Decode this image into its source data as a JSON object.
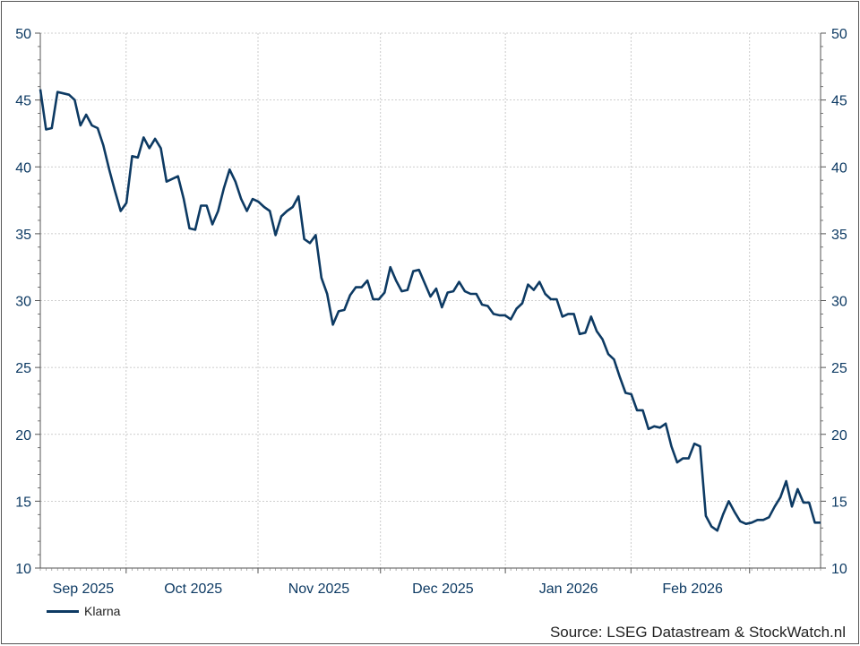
{
  "chart_data": {
    "type": "line",
    "x_axis_labels": [
      "Sep 2025",
      "Oct 2025",
      "Nov 2025",
      "Dec 2025",
      "Jan 2026",
      "Feb 2026"
    ],
    "y_ticks": [
      10,
      15,
      20,
      25,
      30,
      35,
      40,
      45,
      50
    ],
    "ylim": [
      10,
      50
    ],
    "grid": true,
    "legend_position": "bottom-left",
    "series": [
      {
        "name": "Klarna",
        "color": "#0d3a63",
        "values": [
          45.8,
          42.8,
          42.9,
          45.6,
          45.5,
          45.4,
          45.0,
          43.1,
          43.9,
          43.1,
          42.9,
          41.6,
          39.8,
          38.2,
          36.7,
          37.3,
          40.8,
          40.7,
          42.2,
          41.4,
          42.1,
          41.4,
          38.9,
          39.1,
          39.3,
          37.6,
          35.4,
          35.3,
          37.1,
          37.1,
          35.7,
          36.7,
          38.4,
          39.8,
          38.9,
          37.6,
          36.7,
          37.6,
          37.4,
          37.0,
          36.7,
          34.9,
          36.3,
          36.7,
          37.0,
          37.8,
          34.6,
          34.3,
          34.9,
          31.7,
          30.5,
          28.2,
          29.2,
          29.3,
          30.4,
          31.0,
          31.0,
          31.5,
          30.1,
          30.1,
          30.6,
          32.5,
          31.5,
          30.7,
          30.8,
          32.2,
          32.3,
          31.3,
          30.3,
          30.9,
          29.5,
          30.6,
          30.7,
          31.4,
          30.7,
          30.5,
          30.5,
          29.7,
          29.6,
          29.0,
          28.9,
          28.9,
          28.6,
          29.4,
          29.8,
          31.2,
          30.8,
          31.4,
          30.5,
          30.1,
          30.1,
          28.8,
          29.0,
          29.0,
          27.5,
          27.6,
          28.8,
          27.7,
          27.1,
          26.0,
          25.6,
          24.3,
          23.1,
          23.0,
          21.8,
          21.8,
          20.4,
          20.6,
          20.5,
          20.8,
          19.1,
          17.9,
          18.2,
          18.2,
          19.3,
          19.1,
          13.9,
          13.1,
          12.8,
          14.0,
          15.0,
          14.2,
          13.5,
          13.3,
          13.4,
          13.6,
          13.6,
          13.8,
          14.6,
          15.3,
          16.5,
          14.6,
          15.9,
          14.9,
          14.9,
          13.4,
          13.4
        ]
      }
    ]
  },
  "source_text": "Source: LSEG Datastream & StockWatch.nl"
}
